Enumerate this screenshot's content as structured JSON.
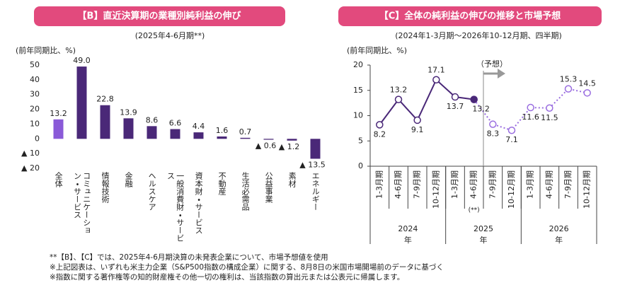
{
  "chart_data": [
    {
      "type": "bar",
      "title": "【B】直近決算期の業種別純利益の伸び",
      "subtitle": "(2025年4-6月期**)",
      "y_label": "(前年同期比、%)",
      "categories": [
        "全体",
        "コミュニケーション・サービス",
        "情報技術",
        "金融",
        "ヘルスケア",
        "一般消費財・サービス",
        "資本財・サービス",
        "不動産",
        "生活必需品",
        "公益事業",
        "素材",
        "エネルギー"
      ],
      "values": [
        13.2,
        49.0,
        22.8,
        13.9,
        8.6,
        6.6,
        4.4,
        1.6,
        0.7,
        -0.6,
        -1.2,
        -13.5
      ],
      "value_labels": [
        "13.2",
        "49.0",
        "22.8",
        "13.9",
        "8.6",
        "6.6",
        "4.4",
        "1.6",
        "0.7",
        "▲ 0.6",
        "▲ 1.2",
        "▲ 13.5"
      ],
      "colors": [
        "#8a5ad8",
        "#4a2878",
        "#4a2878",
        "#4a2878",
        "#4a2878",
        "#4a2878",
        "#4a2878",
        "#4a2878",
        "#4a2878",
        "#4a2878",
        "#4a2878",
        "#4a2878"
      ],
      "ylim": [
        -20,
        50
      ],
      "yticks": [
        {
          "value": -20,
          "label": "▲ 20"
        },
        {
          "value": -10,
          "label": "▲ 10"
        },
        0,
        10,
        20,
        30,
        40,
        50
      ]
    },
    {
      "type": "line",
      "title": "【C】全体の純利益の伸びの推移と市場予想",
      "subtitle": "(2024年1-3月期～2026年10-12月期、四半期)",
      "y_label": "(前年同期比、%)",
      "categories": [
        "1-3月期",
        "4-6月期",
        "7-9月期",
        "10-12月期",
        "1-3月期",
        "4-6月期",
        "7-9月期",
        "10-12月期",
        "1-3月期",
        "4-6月期",
        "7-9月期",
        "10-12月期"
      ],
      "groups": [
        "2024年",
        "2025年",
        "2026年"
      ],
      "category_note": "(**)",
      "forecast_label": "（予想）",
      "series": [
        {
          "color": "#4a2878",
          "values": [
            8.2,
            13.2,
            9.1,
            17.1,
            13.7,
            13.2,
            null,
            null,
            null,
            null,
            null,
            null
          ]
        },
        {
          "color": "#9a6ee0",
          "dashed": true,
          "values": [
            null,
            null,
            null,
            null,
            null,
            13.2,
            8.3,
            7.1,
            11.6,
            11.5,
            15.3,
            14.5
          ]
        }
      ],
      "ylim": [
        0,
        20
      ],
      "yticks": [
        0,
        5,
        10,
        15,
        20
      ]
    }
  ],
  "footnotes": [
    "**【B】、【C】では、2025年4-6月期決算の未発表企業について、市場予想値を使用",
    "※上記図表は、いずれも米主力企業（S&P500指数の構成企業）に関する、8月8日の米国市場開場前のデータに基づく",
    "※指数に関する著作権等の知的財産権その他一切の権利は、当該指数の算出元または公表元に帰属します。"
  ]
}
